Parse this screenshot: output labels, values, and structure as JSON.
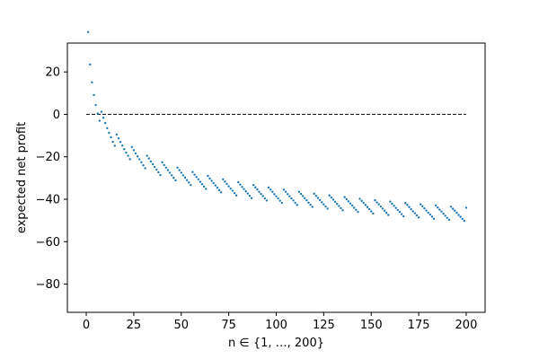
{
  "chart_data": {
    "type": "scatter",
    "title": "",
    "xlabel": "n ∈ {1, …, 200}",
    "ylabel": "expected net profit",
    "xlim": [
      -9.95,
      209.95
    ],
    "ylim": [
      -93.3,
      33.6
    ],
    "xticks": [
      0,
      25,
      50,
      75,
      100,
      125,
      150,
      175,
      200
    ],
    "yticks": [
      -80,
      -60,
      -40,
      -20,
      0,
      20
    ],
    "grid": false,
    "legend": "none",
    "reference_line": {
      "y": 0,
      "x_start": 0,
      "x_end": 200,
      "style": "dashed",
      "color": "#000000"
    },
    "series": [
      {
        "color": "#1f77b4",
        "marker_size": 2,
        "formula_note": "",
        "x": [],
        "y": []
      }
    ]
  }
}
